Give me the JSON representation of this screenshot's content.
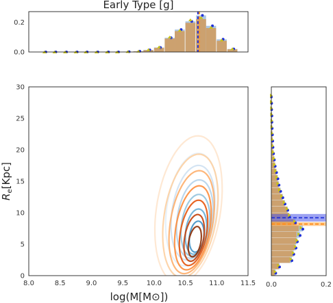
{
  "chart_data": [
    {
      "id": "top-marginal",
      "type": "bar",
      "title": "Early Type [g]",
      "xlim": [
        8.0,
        11.5
      ],
      "ylim": [
        0,
        0.27
      ],
      "yticks": [
        0.0,
        0.2
      ],
      "ytick_labels": [
        "0.0",
        "0.2"
      ],
      "bin_width": 0.16,
      "series": [
        {
          "bins": [
            8.25,
            8.41,
            8.58,
            8.75,
            8.91,
            9.08,
            9.25,
            9.41,
            9.58,
            9.75,
            9.91,
            10.08,
            10.25,
            10.41,
            10.58,
            10.75,
            10.91,
            11.08,
            11.25
          ],
          "values": [
            0.0,
            0.0,
            0.0,
            0.0,
            0.0,
            0.0,
            0.0,
            0.0,
            0.002,
            0.004,
            0.012,
            0.028,
            0.09,
            0.14,
            0.195,
            0.22,
            0.16,
            0.075,
            0.018
          ]
        }
      ],
      "markers": {
        "blue": [
          0.0,
          0.0,
          0.0,
          0.0,
          0.0,
          0.0,
          0.0,
          0.0,
          0.002,
          0.005,
          0.014,
          0.03,
          0.095,
          0.15,
          0.205,
          0.245,
          0.175,
          0.085,
          0.02
        ],
        "yellow": [
          0.0,
          0.0,
          0.0,
          0.0,
          0.0,
          0.0,
          0.0,
          0.0,
          0.003,
          0.006,
          0.016,
          0.034,
          0.1,
          0.145,
          0.215,
          0.23,
          0.165,
          0.08,
          0.022
        ]
      },
      "vlines": {
        "blue": 10.7,
        "orange": 10.72
      }
    },
    {
      "id": "main-contour",
      "type": "contour",
      "xlabel": "log(M[M$_{\\odot}$])",
      "ylabel": "R_e[Kpc]",
      "xlim": [
        8.0,
        11.5
      ],
      "ylim": [
        0,
        30
      ],
      "xticks": [
        8.0,
        8.5,
        9.0,
        9.5,
        10.0,
        10.5,
        11.0,
        11.5
      ],
      "xtick_labels": [
        "8.0",
        "8.5",
        "9.0",
        "9.5",
        "10.0",
        "10.5",
        "11.0",
        "11.5"
      ],
      "yticks": [
        0,
        5,
        10,
        15,
        20,
        25,
        30
      ],
      "ytick_labels": [
        "0",
        "5",
        "10",
        "15",
        "20",
        "25",
        "30"
      ],
      "series": [
        {
          "palette": "blues",
          "colors": [
            "#e3eef8",
            "#cfe1f2",
            "#b5d3ea",
            "#93c4de",
            "#6aaed6",
            "#4292c6",
            "#2171b5"
          ],
          "levels": [
            {
              "cx": 10.6,
              "cy": 10.5,
              "a": 0.95,
              "b": 12.5,
              "angle": 62
            },
            {
              "cx": 10.62,
              "cy": 10.0,
              "a": 0.8,
              "b": 10.5,
              "angle": 62
            },
            {
              "cx": 10.65,
              "cy": 9.0,
              "a": 0.66,
              "b": 8.8,
              "angle": 62
            },
            {
              "cx": 10.66,
              "cy": 8.0,
              "a": 0.52,
              "b": 7.0,
              "angle": 62
            },
            {
              "cx": 10.67,
              "cy": 7.0,
              "a": 0.38,
              "b": 5.2,
              "angle": 62
            },
            {
              "cx": 10.68,
              "cy": 6.2,
              "a": 0.26,
              "b": 3.6,
              "angle": 62
            }
          ]
        },
        {
          "palette": "oranges",
          "colors": [
            "#fee6ce",
            "#fdd0a2",
            "#fdae6b",
            "#fd8d3c",
            "#e6550d",
            "#c2410c",
            "#8c2d04"
          ],
          "levels": [
            {
              "cx": 10.55,
              "cy": 10.5,
              "a": 1.25,
              "b": 16.0,
              "angle": 62
            },
            {
              "cx": 10.58,
              "cy": 9.5,
              "a": 1.05,
              "b": 13.0,
              "angle": 62
            },
            {
              "cx": 10.6,
              "cy": 8.5,
              "a": 0.88,
              "b": 10.5,
              "angle": 62
            },
            {
              "cx": 10.62,
              "cy": 7.6,
              "a": 0.72,
              "b": 8.4,
              "angle": 62
            },
            {
              "cx": 10.63,
              "cy": 6.8,
              "a": 0.56,
              "b": 6.5,
              "angle": 62
            },
            {
              "cx": 10.64,
              "cy": 6.0,
              "a": 0.4,
              "b": 4.7,
              "angle": 62
            },
            {
              "cx": 10.65,
              "cy": 5.4,
              "a": 0.26,
              "b": 3.0,
              "angle": 62
            }
          ]
        }
      ]
    },
    {
      "id": "right-marginal",
      "type": "bar",
      "orientation": "horizontal",
      "xlim": [
        0,
        0.2
      ],
      "xticks": [
        0.0,
        0.2
      ],
      "xtick_labels": [
        "0.0",
        "0.2"
      ],
      "ylim": [
        0,
        30
      ],
      "bin_width": 0.95,
      "series": [
        {
          "bins": [
            0.5,
            1.5,
            2.5,
            3.5,
            4.5,
            5.5,
            6.5,
            7.5,
            8.5,
            9.5,
            10.5,
            11.5,
            12.5,
            13.5,
            14.5,
            15.5,
            16.5,
            17.5,
            18.5,
            19.5,
            20.5,
            21.5,
            22.5,
            23.5,
            24.5,
            25.5,
            26.5,
            27.5,
            28.5
          ],
          "values": [
            0.012,
            0.028,
            0.068,
            0.078,
            0.085,
            0.09,
            0.092,
            0.1,
            0.082,
            0.064,
            0.058,
            0.048,
            0.04,
            0.032,
            0.026,
            0.022,
            0.018,
            0.014,
            0.011,
            0.008,
            0.006,
            0.005,
            0.004,
            0.003,
            0.002,
            0.002,
            0.001,
            0.001,
            0.0
          ]
        }
      ],
      "markers": {
        "blue": [
          0.016,
          0.03,
          0.075,
          0.082,
          0.09,
          0.095,
          0.105,
          0.115,
          0.088,
          0.066,
          0.06,
          0.05,
          0.042,
          0.034,
          0.028,
          0.024,
          0.019,
          0.014,
          0.011,
          0.008,
          0.006,
          0.005,
          0.004,
          0.003,
          0.002,
          0.002,
          0.001,
          0.001,
          0.0
        ],
        "yellow": [
          0.014,
          0.026,
          0.072,
          0.08,
          0.088,
          0.094,
          0.1,
          0.108,
          0.085,
          0.066,
          0.058,
          0.047,
          0.038,
          0.03,
          0.024,
          0.02,
          0.016,
          0.012,
          0.01,
          0.007,
          0.005,
          0.004,
          0.003,
          0.002,
          0.002,
          0.001,
          0.001,
          0.0,
          0.0
        ]
      },
      "hbands": [
        {
          "color": "blue",
          "center": 9.2,
          "low": 8.6,
          "high": 9.8
        },
        {
          "color": "orange",
          "center": 8.2,
          "low": 7.9,
          "high": 8.5
        }
      ]
    }
  ]
}
